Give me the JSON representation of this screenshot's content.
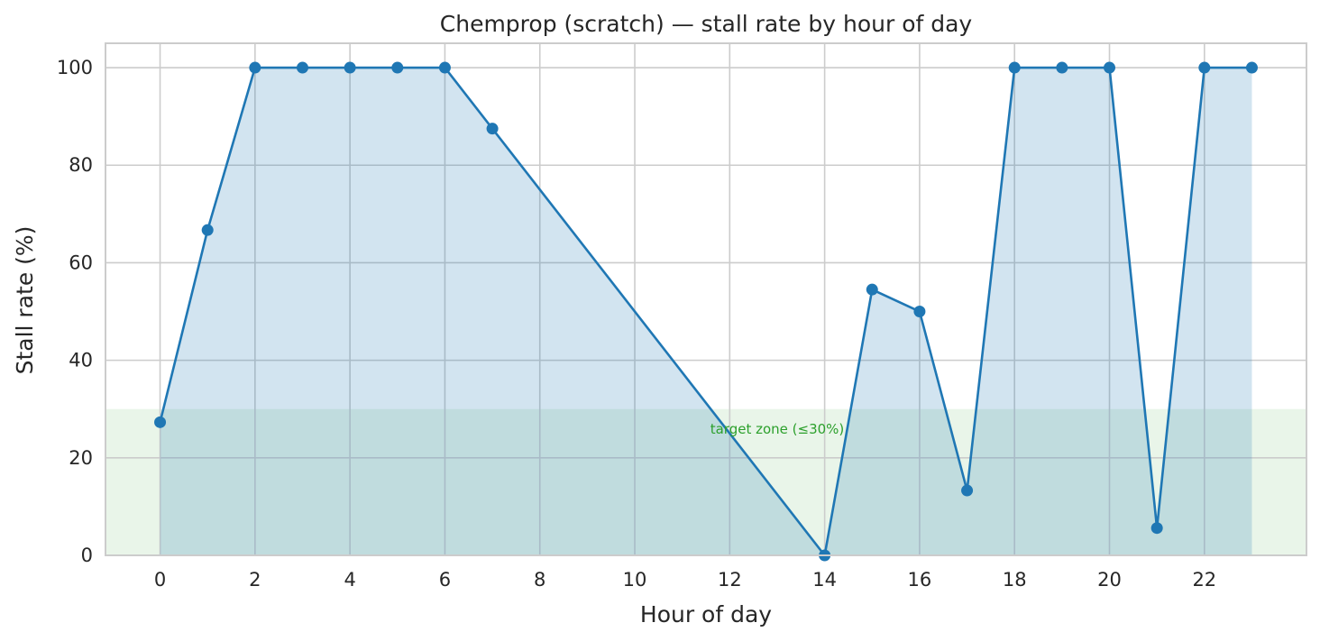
{
  "chart_data": {
    "type": "line",
    "title": "Chemprop (scratch) — stall rate by hour of day",
    "xlabel": "Hour of day",
    "ylabel": "Stall rate (%)",
    "x": [
      0,
      1,
      2,
      3,
      4,
      5,
      6,
      7,
      14,
      15,
      16,
      17,
      18,
      19,
      20,
      21,
      22,
      23
    ],
    "series": [
      {
        "values": [
          27.3,
          66.7,
          100,
          100,
          100,
          100,
          100,
          87.5,
          0,
          54.5,
          50,
          13.3,
          100,
          100,
          100,
          5.6,
          100,
          100
        ]
      }
    ],
    "xlim": [
      -1.15,
      24.15
    ],
    "ylim": [
      0,
      105
    ],
    "xticks": [
      "0",
      "2",
      "4",
      "6",
      "8",
      "10",
      "12",
      "14",
      "16",
      "18",
      "20",
      "22"
    ],
    "yticks": [
      "0",
      "20",
      "40",
      "60",
      "80",
      "100"
    ],
    "grid": true,
    "target_zone": {
      "max": 30,
      "label": "target zone (≤30%)"
    },
    "colors": {
      "line": "#1f77b4",
      "fill": "#1f77b4",
      "target_zone": "#2ca02c",
      "grid": "#cccccc",
      "frame": "#cccccc"
    }
  }
}
